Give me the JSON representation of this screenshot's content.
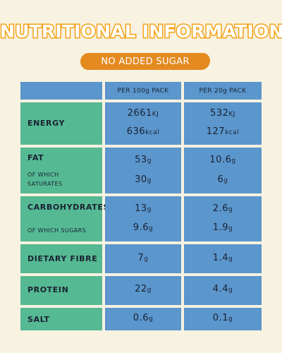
{
  "title": "NUTRITIONAL INFORMATION",
  "banner": "NO ADDED SUGAR",
  "columns": {
    "per100": "PER 100g PACK",
    "per20": "PER 20g PACK"
  },
  "rows": {
    "energy": {
      "label": "ENERGY",
      "kj100": "2661",
      "kj20": "532",
      "kj_unit": "KJ",
      "kcal100": "636",
      "kcal20": "127",
      "kcal_unit": "kcal"
    },
    "fat": {
      "label": "FAT",
      "sub": "OF WHICH SATURATES",
      "v100": "53",
      "v20": "10.6",
      "sat100": "30",
      "sat20": "6"
    },
    "carbs": {
      "label": "CARBOHYDRATES",
      "sub": "OF WHICH SUGARS",
      "v100": "13",
      "v20": "2.6",
      "sug100": "9.6",
      "sug20": "1.9"
    },
    "fibre": {
      "label": "DIETARY FIBRE",
      "v100": "7",
      "v20": "1.4"
    },
    "protein": {
      "label": "PROTEIN",
      "v100": "22",
      "v20": "4.4"
    },
    "salt": {
      "label": "SALT",
      "v100": "0.6",
      "v20": "0.1"
    }
  },
  "unit_g": "g"
}
